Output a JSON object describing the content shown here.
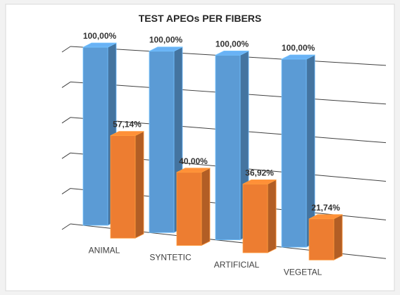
{
  "chart_data": {
    "type": "bar3d",
    "title": "TEST APEOs PER FIBERS",
    "categories": [
      "ANIMAL",
      "SYNTETIC",
      "ARTIFICIAL",
      "VEGETAL"
    ],
    "series": [
      {
        "color": "#5b9bd5",
        "values": [
          100,
          100,
          100,
          100
        ],
        "value_labels": [
          "100,00%",
          "100,00%",
          "100,00%",
          "100,00%"
        ]
      },
      {
        "color": "#ed7d31",
        "values": [
          57.14,
          40,
          36.92,
          21.74
        ],
        "value_labels": [
          "57,14%",
          "40,00%",
          "36,92%",
          "21,74%"
        ]
      }
    ],
    "ylim": [
      0,
      100
    ],
    "yticks": [
      0,
      20,
      40,
      60,
      80,
      100
    ],
    "grid": true
  }
}
